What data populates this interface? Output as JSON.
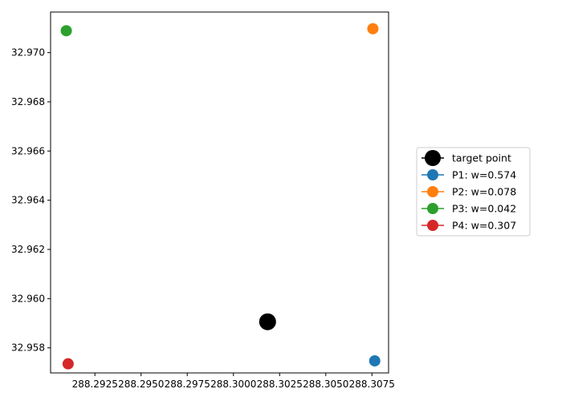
{
  "chart_data": {
    "type": "scatter",
    "title": "",
    "xlabel": "",
    "ylabel": "",
    "xlim": [
      288.2901,
      288.3084
    ],
    "ylim": [
      32.95698,
      32.97165
    ],
    "xticks": [
      288.2925,
      288.295,
      288.2975,
      288.3,
      288.3025,
      288.305,
      288.3075
    ],
    "xtick_labels": [
      "288.2925",
      "288.2950",
      "288.2975",
      "288.3000",
      "288.3025",
      "288.3050",
      "288.3075"
    ],
    "yticks": [
      32.958,
      32.96,
      32.962,
      32.964,
      32.966,
      32.968,
      32.97
    ],
    "ytick_labels": [
      "32.958",
      "32.960",
      "32.962",
      "32.964",
      "32.966",
      "32.968",
      "32.970"
    ],
    "grid": false,
    "legend_position": "center-right outside",
    "series": [
      {
        "name": "target point",
        "color": "#000000",
        "marker_size": "large",
        "points": [
          {
            "x": 288.30185,
            "y": 32.95906
          }
        ]
      },
      {
        "name": "P1: w=0.574",
        "color": "#1f77b4",
        "marker_size": "normal",
        "points": [
          {
            "x": 288.30765,
            "y": 32.95747
          }
        ]
      },
      {
        "name": "P2: w=0.078",
        "color": "#ff7f0e",
        "marker_size": "normal",
        "points": [
          {
            "x": 288.30755,
            "y": 32.97097
          }
        ]
      },
      {
        "name": "P3: w=0.042",
        "color": "#2ca02c",
        "marker_size": "normal",
        "points": [
          {
            "x": 288.29095,
            "y": 32.97089
          }
        ]
      },
      {
        "name": "P4: w=0.307",
        "color": "#d62728",
        "marker_size": "normal",
        "points": [
          {
            "x": 288.29105,
            "y": 32.95735
          }
        ]
      }
    ]
  }
}
